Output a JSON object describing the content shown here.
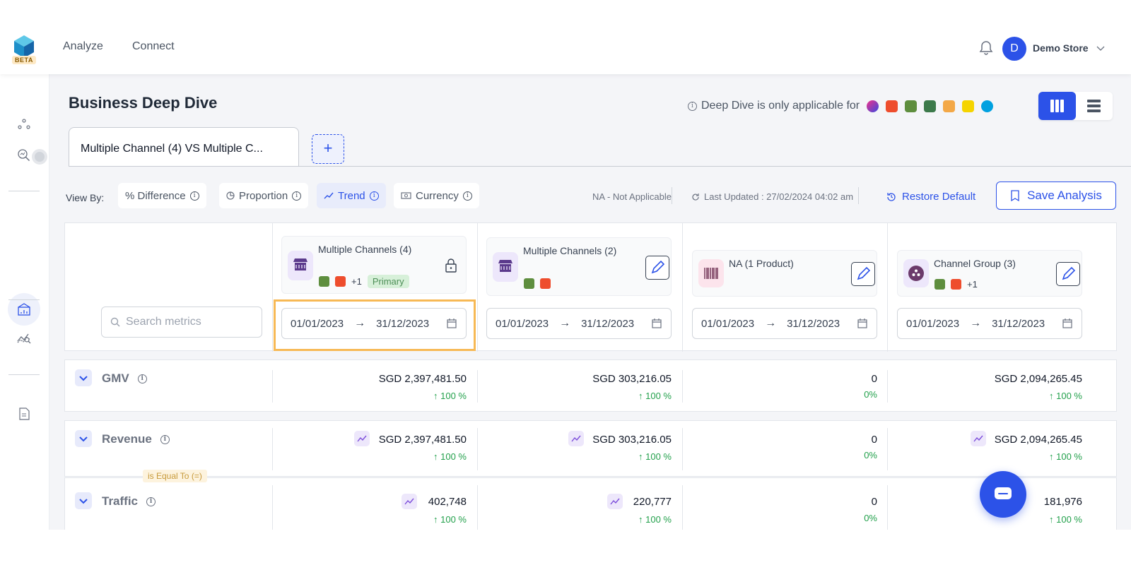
{
  "header": {
    "logo_badge": "BETA",
    "nav": [
      "Analyze",
      "Connect"
    ],
    "avatar_letter": "D",
    "store_name": "Demo Store"
  },
  "page": {
    "title": "Business Deep Dive",
    "deep_dive_note": "Deep Dive is only applicable for",
    "tab_label": "Multiple Channel (4) VS Multiple C...",
    "add_tab": "+"
  },
  "toolbar": {
    "view_by": "View By:",
    "chips": [
      "% Difference",
      "Proportion",
      "Trend",
      "Currency"
    ],
    "active_chip": "Trend",
    "na_text": "NA - Not Applicable",
    "last_updated": "Last Updated : 27/02/2024 04:02 am",
    "restore": "Restore Default",
    "save": "Save Analysis"
  },
  "search": {
    "placeholder": "Search metrics"
  },
  "columns": [
    {
      "name": "Multiple Channels (4)",
      "extra": "+1",
      "badge": "Primary",
      "start": "01/01/2023",
      "end": "31/12/2023"
    },
    {
      "name": "Multiple Channels (2)",
      "extra": "",
      "badge": "",
      "start": "01/01/2023",
      "end": "31/12/2023"
    },
    {
      "name": "NA (1 Product)",
      "extra": "",
      "badge": "",
      "start": "01/01/2023",
      "end": "31/12/2023"
    },
    {
      "name": "Channel Group (3)",
      "extra": "+1",
      "badge": "",
      "start": "01/01/2023",
      "end": "31/12/2023"
    }
  ],
  "arrow_glyph": "→",
  "metrics": [
    {
      "name": "GMV",
      "values": [
        "SGD 2,397,481.50",
        "SGD 303,216.05",
        "0",
        "SGD 2,094,265.45"
      ],
      "changes": [
        "↑ 100 %",
        "↑ 100 %",
        "0%",
        "↑ 100 %"
      ]
    },
    {
      "name": "Revenue",
      "values": [
        "SGD 2,397,481.50",
        "SGD 303,216.05",
        "0",
        "SGD 2,094,265.45"
      ],
      "changes": [
        "↑ 100 %",
        "↑ 100 %",
        "0%",
        "↑ 100 %"
      ]
    },
    {
      "name": "Traffic",
      "values": [
        "402,748",
        "220,777",
        "0",
        "181,976"
      ],
      "changes": [
        "↑ 100 %",
        "↑ 100 %",
        "0%",
        "↑ 100 %"
      ]
    }
  ],
  "equal_badge": "is Equal To (=)",
  "colors": {
    "accent": "#2c52e8",
    "highlight": "#f7b955",
    "positive": "#22a04b"
  }
}
